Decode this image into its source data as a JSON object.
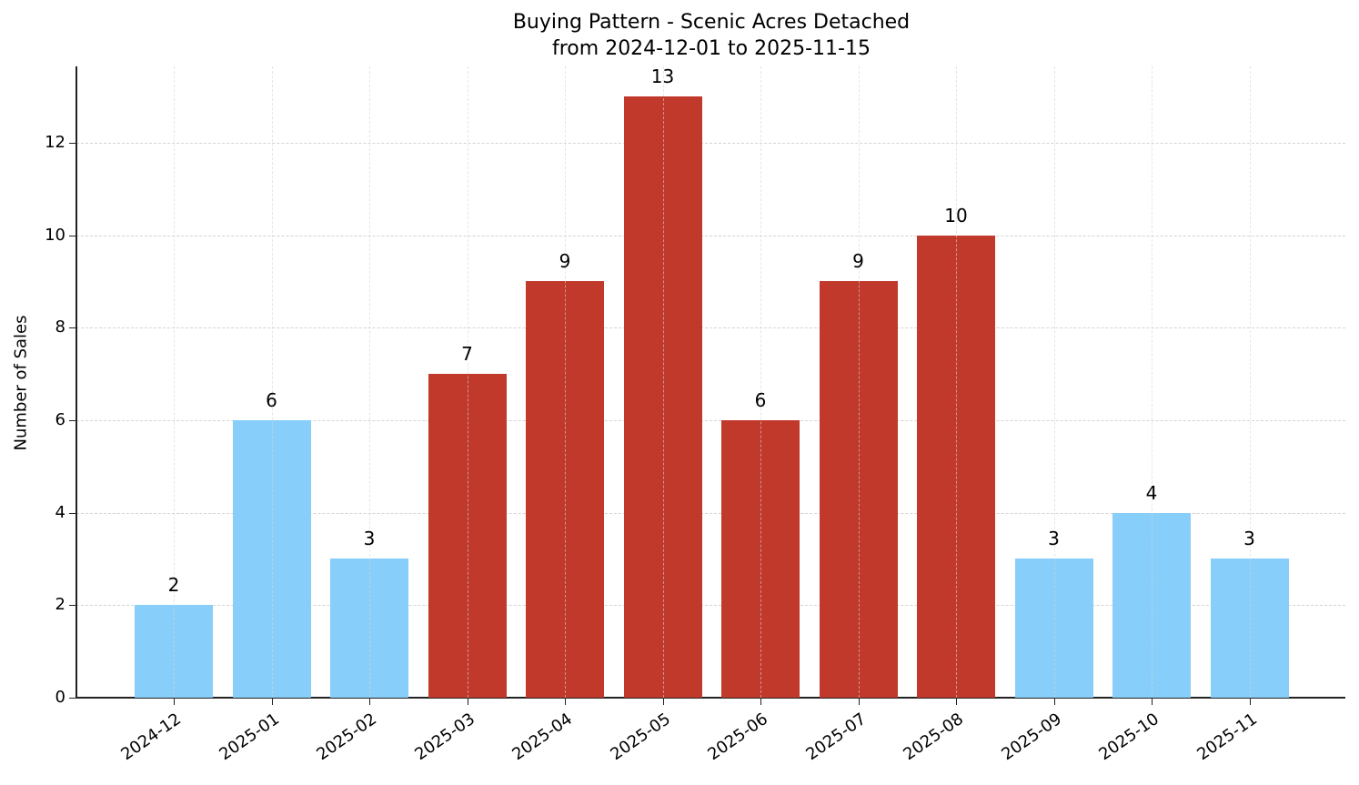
{
  "chart_data": {
    "type": "bar",
    "title": "Buying Pattern - Scenic Acres Detached\nfrom 2024-12-01 to 2025-11-15",
    "title_line1": "Buying Pattern - Scenic Acres Detached",
    "title_line2": "from 2024-12-01 to 2025-11-15",
    "xlabel": "",
    "ylabel": "Number of Sales",
    "categories": [
      "2024-12",
      "2025-01",
      "2025-02",
      "2025-03",
      "2025-04",
      "2025-05",
      "2025-06",
      "2025-07",
      "2025-08",
      "2025-09",
      "2025-10",
      "2025-11"
    ],
    "values": [
      2,
      6,
      3,
      7,
      9,
      13,
      6,
      9,
      10,
      3,
      4,
      3
    ],
    "bar_colors": [
      "#87CEFA",
      "#87CEFA",
      "#87CEFA",
      "#C0392B",
      "#C0392B",
      "#C0392B",
      "#C0392B",
      "#C0392B",
      "#C0392B",
      "#87CEFA",
      "#87CEFA",
      "#87CEFA"
    ],
    "color_legend": {
      "high_season": "#C0392B",
      "low_season": "#87CEFA"
    },
    "yticks": [
      0,
      2,
      4,
      6,
      8,
      10,
      12
    ],
    "ylim": [
      0,
      13.65
    ],
    "grid": true,
    "grid_style": "dashed",
    "legend": null,
    "data_labels": true
  }
}
